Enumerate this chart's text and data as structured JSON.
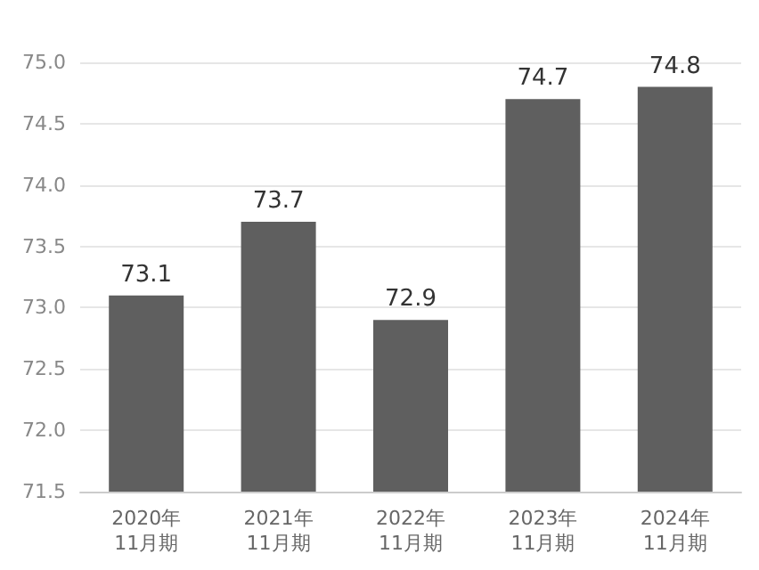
{
  "chart_data": {
    "type": "bar",
    "categories": [
      "2020年\n11月期",
      "2021年\n11月期",
      "2022年\n11月期",
      "2023年\n11月期",
      "2024年\n11月期"
    ],
    "values": [
      73.1,
      73.7,
      72.9,
      74.7,
      74.8
    ],
    "color": "#5f5f5f",
    "ylim": [
      71.5,
      75.0
    ],
    "yticks": [
      {
        "value": 71.5,
        "label": "71.5"
      },
      {
        "value": 72,
        "label": "72.0"
      },
      {
        "value": 72.5,
        "label": "72.5"
      },
      {
        "value": 73,
        "label": "73.0"
      },
      {
        "value": 73.5,
        "label": "73.5"
      },
      {
        "value": 74,
        "label": "74.0"
      },
      {
        "value": 74.5,
        "label": "74.5"
      },
      {
        "value": 75,
        "label": "75.0"
      }
    ],
    "grid": "y",
    "data_labels": true
  }
}
